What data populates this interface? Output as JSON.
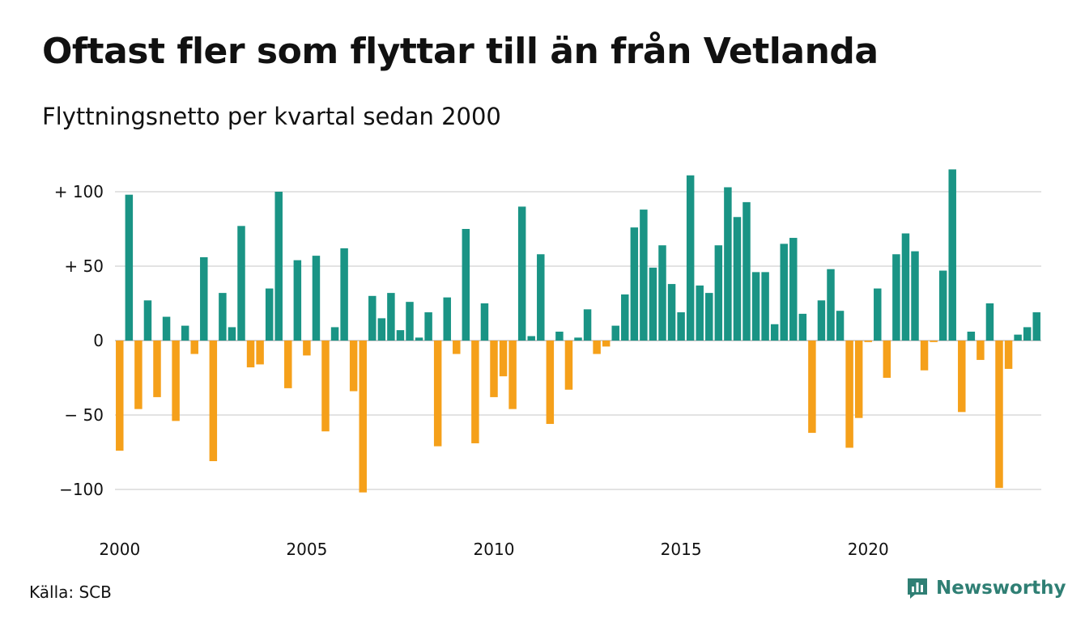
{
  "header": {
    "title": "Oftast fler som flyttar till än från Vetlanda",
    "subtitle": "Flyttningsnetto per kvartal sedan 2000"
  },
  "footer": {
    "source": "Källa: SCB",
    "brand": "Newsworthy"
  },
  "colors": {
    "positive": "#1a9485",
    "negative": "#f5a01a",
    "grid": "#e3e3e3",
    "brand": "#2f7f74"
  },
  "icons": {
    "brand_logo": "newsworthy-logo-icon"
  },
  "chart_data": {
    "type": "bar",
    "title": "Oftast fler som flyttar till än från Vetlanda",
    "subtitle": "Flyttningsnetto per kvartal sedan 2000",
    "ylim": [
      -115,
      115
    ],
    "grid": true,
    "y_ticks": [
      {
        "value": 100,
        "label": "+ 100"
      },
      {
        "value": 50,
        "label": "+  50"
      },
      {
        "value": 0,
        "label": "0"
      },
      {
        "value": -50,
        "label": "− 50"
      },
      {
        "value": -100,
        "label": "−100"
      }
    ],
    "x_ticks": [
      {
        "index": 0,
        "label": "2000"
      },
      {
        "index": 20,
        "label": "2005"
      },
      {
        "index": 40,
        "label": "2010"
      },
      {
        "index": 60,
        "label": "2015"
      },
      {
        "index": 80,
        "label": "2020"
      }
    ],
    "start_year": 2000,
    "quarters_per_year": 4,
    "values": [
      -74,
      98,
      -46,
      27,
      -38,
      16,
      -54,
      10,
      -9,
      56,
      -81,
      32,
      9,
      77,
      -18,
      -16,
      35,
      100,
      -32,
      54,
      -10,
      57,
      -61,
      9,
      62,
      -34,
      -102,
      30,
      15,
      32,
      7,
      26,
      2,
      19,
      -71,
      29,
      -9,
      75,
      -69,
      25,
      -38,
      -24,
      -46,
      90,
      3,
      58,
      -56,
      6,
      -33,
      2,
      21,
      -9,
      -4,
      10,
      31,
      76,
      88,
      49,
      64,
      38,
      19,
      111,
      37,
      32,
      64,
      103,
      83,
      93,
      46,
      46,
      11,
      65,
      69,
      18,
      -62,
      27,
      48,
      20,
      -72,
      -52,
      -1,
      35,
      -25,
      58,
      72,
      60,
      -20,
      -1,
      47,
      115,
      -48,
      6,
      -13,
      25,
      -99,
      -19,
      4,
      9,
      19
    ]
  }
}
